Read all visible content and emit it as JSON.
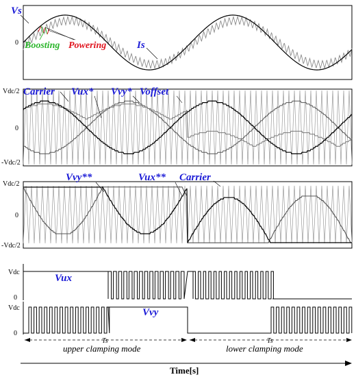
{
  "panel1": {
    "vs_label": "Vs",
    "is_label": "Is",
    "boosting_label": "Boosting",
    "powering_label": "Powering",
    "zero_tick": "0"
  },
  "panel2": {
    "carrier_label": "Carrier",
    "vux_label": "Vux*",
    "vvy_label": "Vvy*",
    "voffset_label": "Voffset",
    "top_tick": "Vdc/2",
    "zero_tick": "0",
    "bottom_tick": "-Vdc/2"
  },
  "panel3": {
    "vvy_label": "Vvy**",
    "vux_label": "Vux**",
    "carrier_label": "Carrier",
    "top_tick": "Vdc/2",
    "zero_tick": "0",
    "bottom_tick": "-Vdc/2"
  },
  "panel4": {
    "vux_label": "Vux",
    "vvy_label": "Vvy",
    "vdc_tick_top": "Vdc",
    "zero_tick_top": "0",
    "vdc_tick_bottom": "Vdc",
    "zero_tick_bottom": "0"
  },
  "annotations": {
    "ts_left": "Ts",
    "ts_right": "Ts",
    "mode_left": "upper clamping mode",
    "mode_right": "lower clamping mode",
    "time_axis": "Time[s]"
  },
  "colors": {
    "label_blue": "#1a1ad6",
    "boosting_green": "#2bb52b",
    "powering_red": "#e0141e",
    "trace_gray": "#8a8a8a",
    "trace_black": "#000000"
  }
}
